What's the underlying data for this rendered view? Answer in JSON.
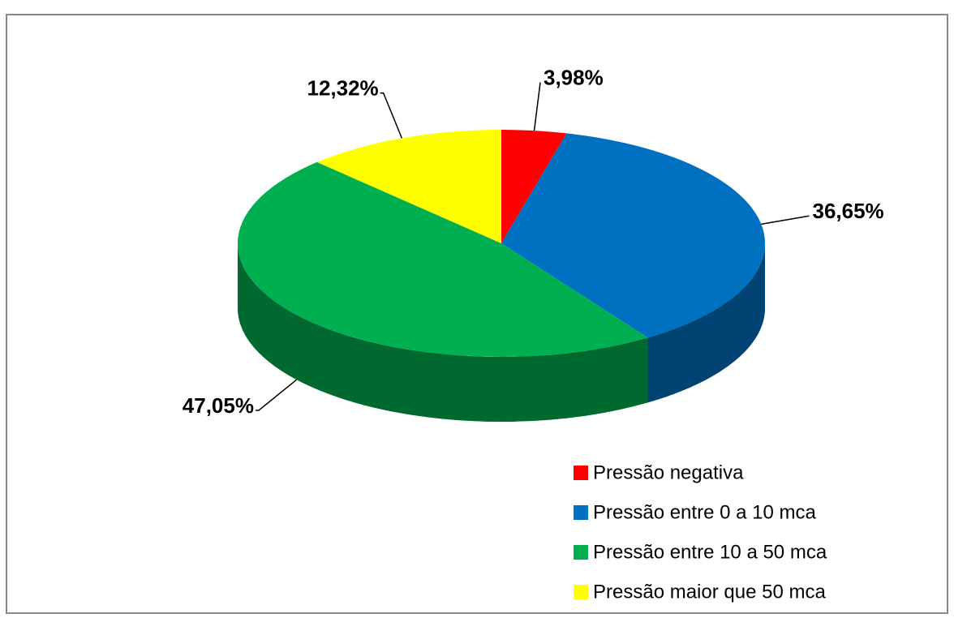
{
  "chart_data": {
    "type": "pie",
    "categories": [
      "Pressão negativa",
      "Pressão entre 0 a 10 mca",
      "Pressão entre 10 a 50 mca",
      "Pressão maior que 50 mca"
    ],
    "values": [
      3.98,
      36.65,
      47.05,
      12.32
    ],
    "value_labels": [
      "3,98%",
      "36,65%",
      "47,05%",
      "12,32%"
    ],
    "colors": [
      "#ff0000",
      "#0070c0",
      "#00b050",
      "#ffff00"
    ],
    "legend": "bottom-right"
  }
}
